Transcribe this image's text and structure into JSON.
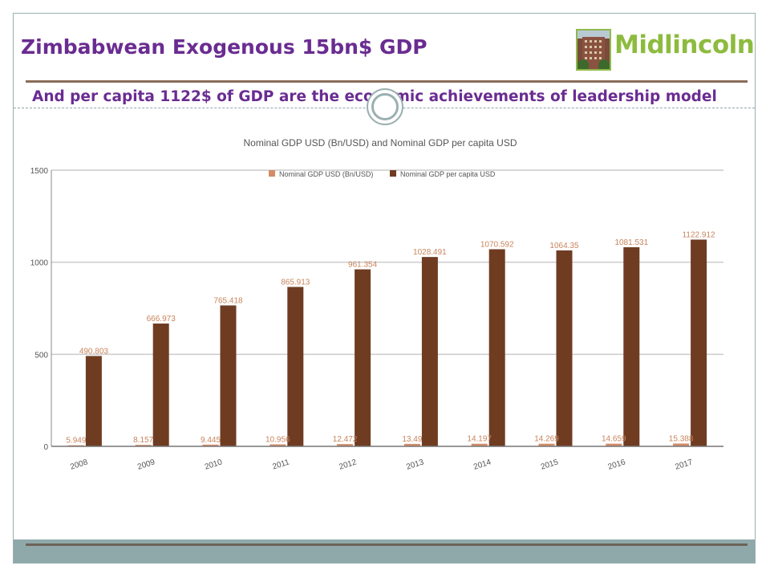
{
  "slide": {
    "title": "Zimbabwean Exogenous 15bn$ GDP",
    "subtitle": "And per capita 1122$ of GDP are the economic achievements of leadership model"
  },
  "logo": {
    "text": "Midlincoln"
  },
  "colors": {
    "title": "#6a2c91",
    "logo_green": "#8dbb3f",
    "series_gdp": "#d28d68",
    "series_per_capita": "#6f3c22",
    "label_color": "#c8845c"
  },
  "chart_data": {
    "type": "bar",
    "title": "Nominal GDP USD (Bn/USD) and Nominal GDP per capita USD",
    "categories": [
      "2008",
      "2009",
      "2010",
      "2011",
      "2012",
      "2013",
      "2014",
      "2015",
      "2016",
      "2017"
    ],
    "series": [
      {
        "name": "Nominal GDP USD (Bn/USD)",
        "values": [
          5.949,
          8.157,
          9.445,
          10.956,
          12.472,
          13.49,
          14.197,
          14.269,
          14.659,
          15.388
        ]
      },
      {
        "name": "Nominal GDP per capita USD",
        "values": [
          490.803,
          666.973,
          765.418,
          865.913,
          961.354,
          1028.491,
          1070.592,
          1064.35,
          1081.531,
          1122.912
        ]
      }
    ],
    "y_ticks": [
      "0",
      "500",
      "1000",
      "1500"
    ],
    "ylim": [
      0,
      1500
    ],
    "grid": true,
    "legend": "top"
  }
}
